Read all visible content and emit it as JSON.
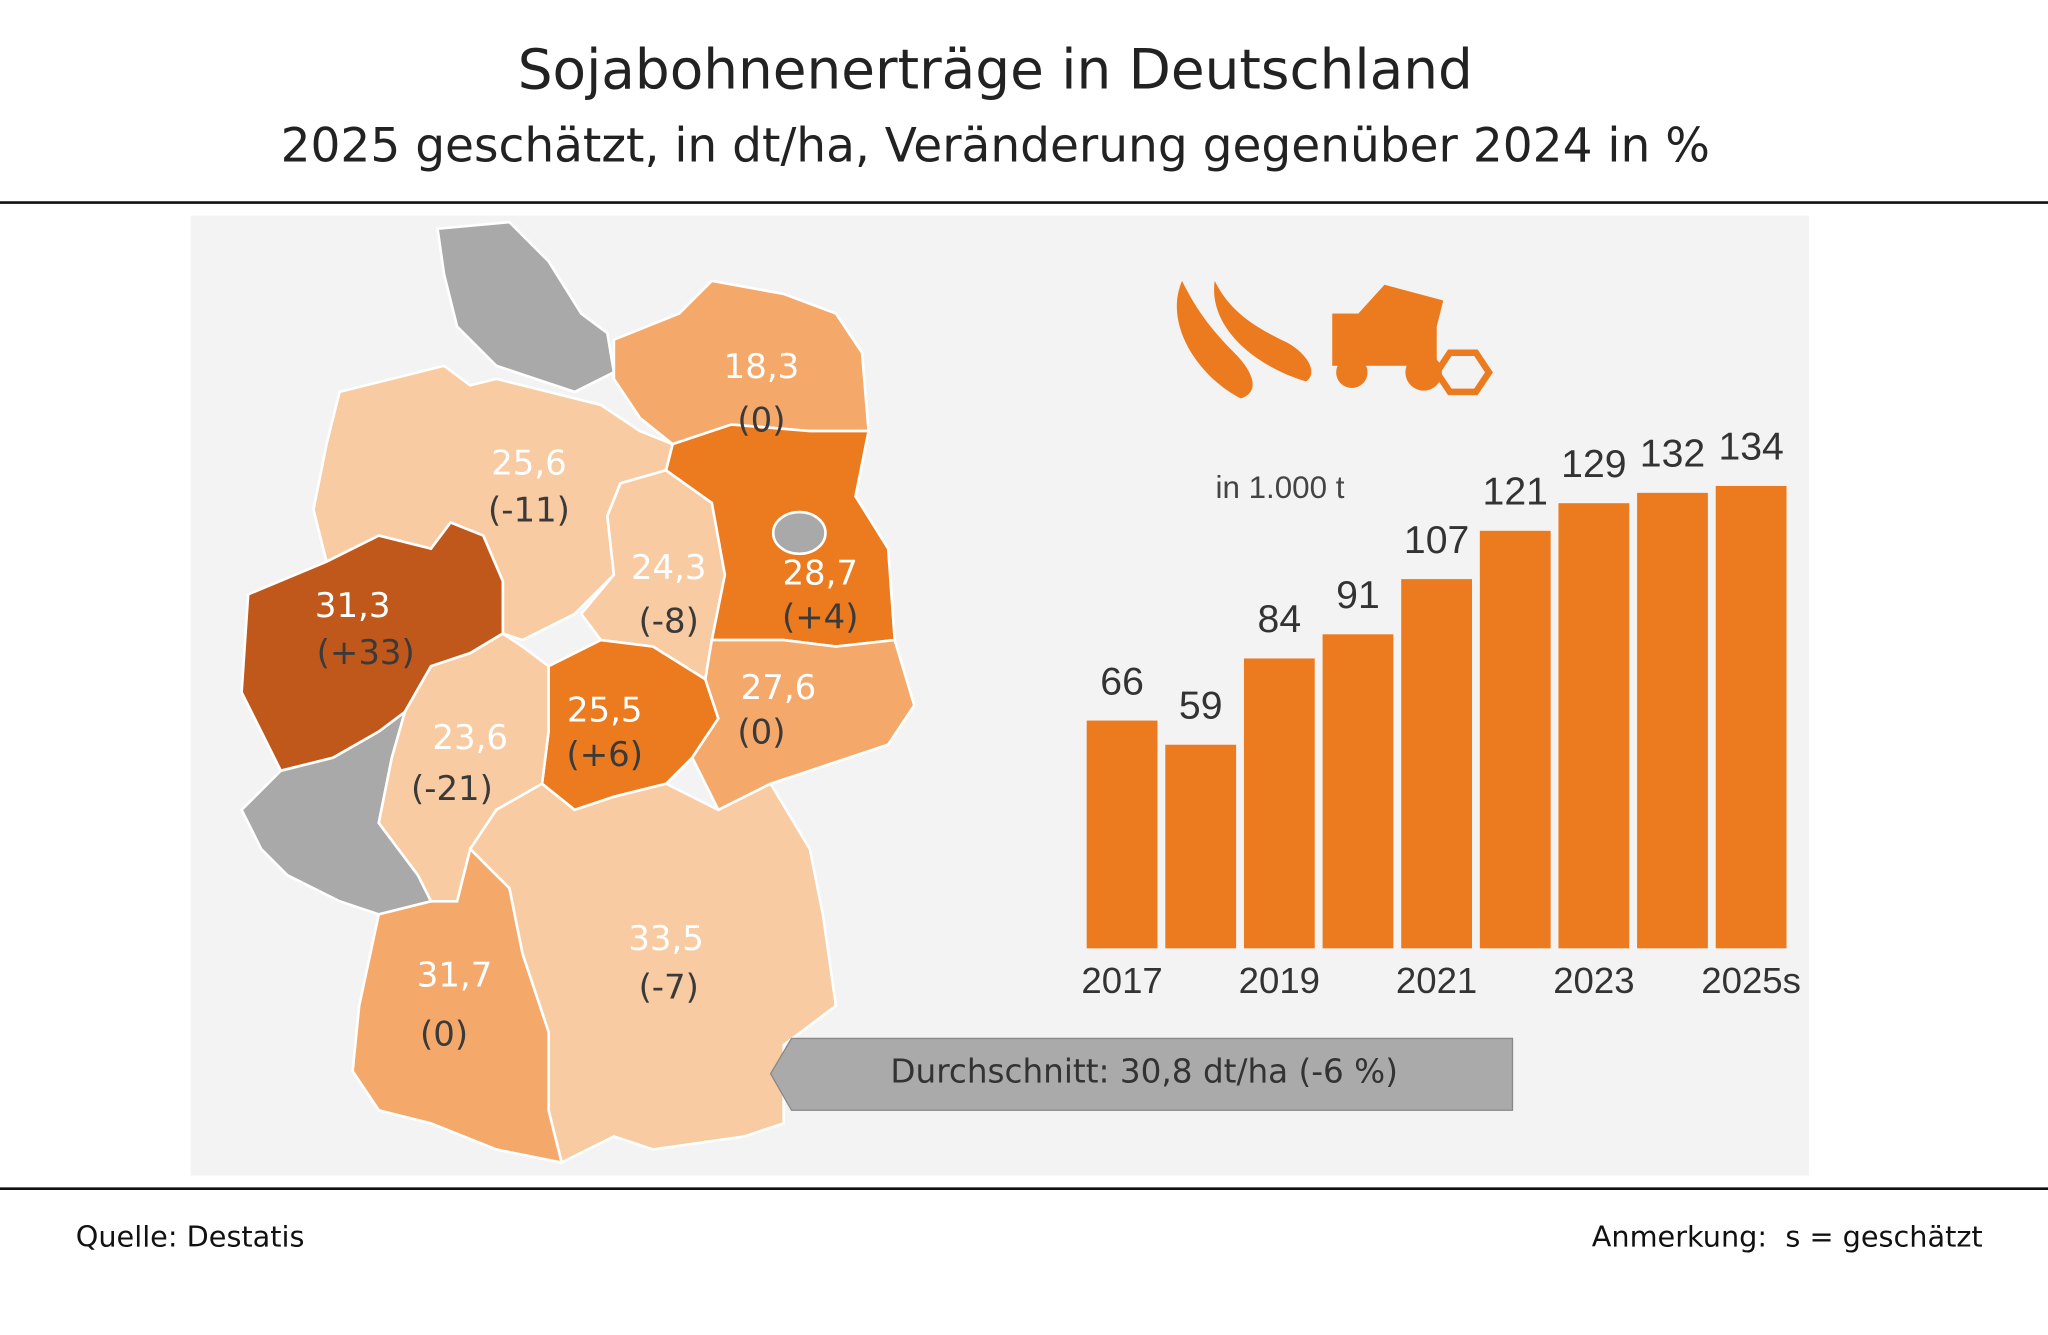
{
  "header": {
    "title": "Sojabohnenerträge in Deutschland",
    "subtitle": "2025 geschätzt, in dt/ha, Veränderung gegenüber 2024 in %"
  },
  "chart_data": [
    {
      "type": "map",
      "values": [
        18.3,
        25.6,
        24.3,
        28.7,
        31.3,
        25.5,
        27.6,
        23.6,
        33.5,
        31.7
      ],
      "value_labels": [
        "18,3",
        "25,6",
        "24,3",
        "28,7",
        "31,3",
        "25,5",
        "27,6",
        "23,6",
        "33,5",
        "31,7"
      ],
      "changes": [
        0,
        -11,
        -8,
        4,
        33,
        6,
        0,
        -21,
        -7,
        0
      ],
      "change_labels": [
        "(0)",
        "(-11)",
        "(-8)",
        "(+4)",
        "(+33)",
        "(+6)",
        "(0)",
        "(-21)",
        "(-7)",
        "(0)"
      ],
      "colors": [
        "#f4a96b",
        "#f8cba2",
        "#f8cba2",
        "#ec7a1e",
        "#c1581b",
        "#ec7a1e",
        "#f4a96b",
        "#f8cba2",
        "#f8cba2",
        "#f4a96b"
      ],
      "annotation": "Durchschnitt: 30,8 dt/ha (-6 %)"
    },
    {
      "type": "bar",
      "unit_label": "in 1.000 t",
      "categories": [
        "2017",
        null,
        "2019",
        null,
        "2021",
        null,
        "2023",
        null,
        "2025s"
      ],
      "values": [
        66,
        59,
        84,
        91,
        107,
        121,
        129,
        132,
        134
      ],
      "color": "#ec7a1e"
    }
  ],
  "footer": {
    "source": "Quelle: Destatis",
    "note": "Anmerkung:  s = geschätzt"
  }
}
